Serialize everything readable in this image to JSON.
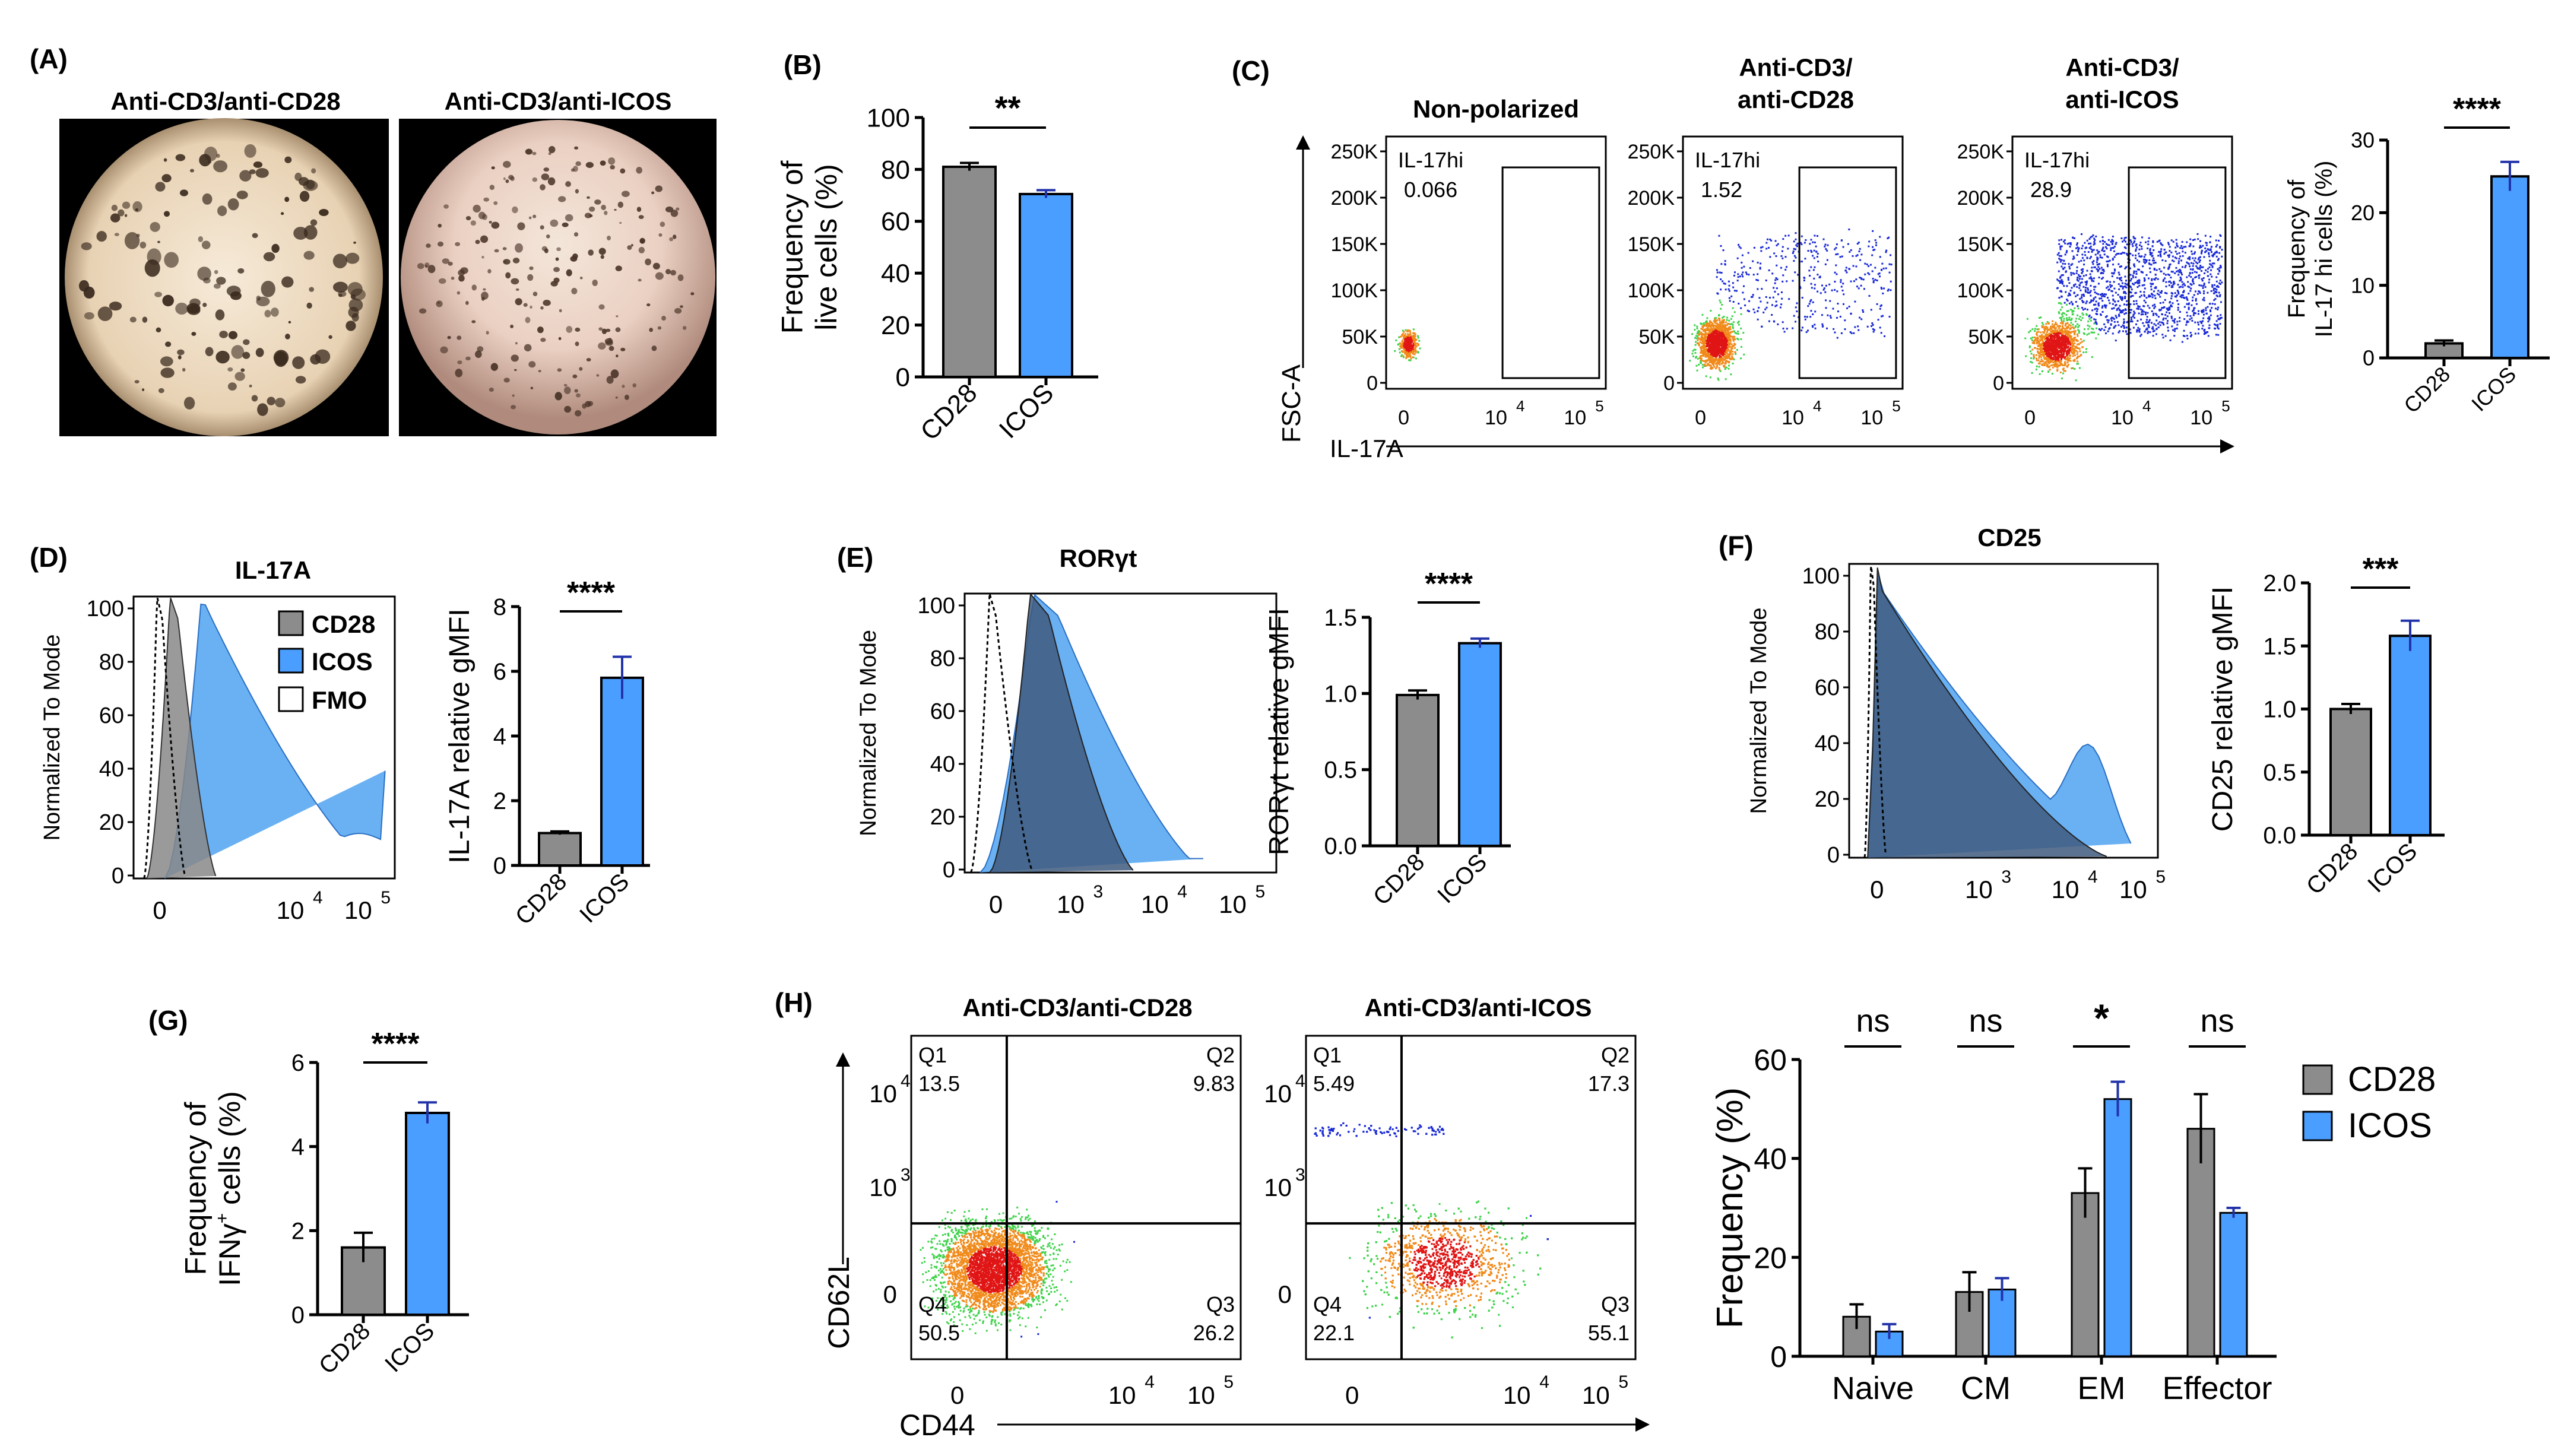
{
  "colors": {
    "cd28": "#8c8c8c",
    "icos": "#4a9eff",
    "icos_fill": "#5aa8f2",
    "error": "#2233aa",
    "dot_low": "#1a2ad6",
    "dot_mid": "#3fd24a",
    "dot_high": "#e01515"
  },
  "panels": {
    "A": {
      "label": "(A)",
      "left_title": "Anti-CD3/anti-CD28",
      "right_title": "Anti-CD3/anti-ICOS"
    },
    "B": {
      "label": "(B)"
    },
    "C": {
      "label": "(C)",
      "x_axis_label": "IL-17A",
      "y_axis_label": "FSC-A",
      "plots": [
        {
          "title": "Non-polarized",
          "gate_label": "IL-17hi",
          "gate_value": "0.066"
        },
        {
          "title": "Anti-CD3/ anti-CD28",
          "title_line1": "Anti-CD3/",
          "title_line2": "anti-CD28",
          "gate_label": "IL-17hi",
          "gate_value": "1.52"
        },
        {
          "title": "Anti-CD3/ anti-ICOS",
          "title_line1": "Anti-CD3/",
          "title_line2": "anti-ICOS",
          "gate_label": "IL-17hi",
          "gate_value": "28.9"
        }
      ],
      "y_ticks": [
        "250K",
        "200K",
        "150K",
        "100K",
        "50K",
        "0"
      ],
      "x_ticks": [
        "0",
        "10",
        "10"
      ],
      "x_tick_exps": [
        "4",
        "5"
      ]
    },
    "D": {
      "label": "(D)",
      "hist_title": "IL-17A",
      "y_axis_label": "Normalized To Mode",
      "legend": [
        {
          "name": "CD28",
          "symbol": "filled-grey"
        },
        {
          "name": "ICOS",
          "symbol": "filled-blue"
        },
        {
          "name": "FMO",
          "symbol": "open"
        }
      ],
      "y_ticks": [
        "100",
        "80",
        "60",
        "40",
        "20",
        "0"
      ],
      "x_ticks": [
        "0",
        "10",
        "10"
      ],
      "x_tick_exps": [
        "4",
        "5"
      ]
    },
    "E": {
      "label": "(E)",
      "hist_title": "RORγt",
      "y_axis_label": "Normalized To Mode",
      "y_ticks": [
        "100",
        "80",
        "60",
        "40",
        "20",
        "0"
      ],
      "x_ticks": [
        "0",
        "10",
        "10",
        "10"
      ],
      "x_tick_exps": [
        "3",
        "4",
        "5"
      ]
    },
    "F": {
      "label": "(F)",
      "hist_title": "CD25",
      "y_axis_label": "Normalized To Mode",
      "y_ticks": [
        "100",
        "80",
        "60",
        "40",
        "20",
        "0"
      ],
      "x_ticks": [
        "0",
        "10",
        "10",
        "10"
      ],
      "x_tick_exps": [
        "3",
        "4",
        "5"
      ]
    },
    "G": {
      "label": "(G)"
    },
    "H": {
      "label": "(H)",
      "x_axis_label": "CD44",
      "y_axis_label": "CD62L",
      "plots": [
        {
          "title": "Anti-CD3/anti-CD28",
          "quadrants": [
            {
              "q": "Q1",
              "v": "13.5"
            },
            {
              "q": "Q2",
              "v": "9.83"
            },
            {
              "q": "Q3",
              "v": "26.2"
            },
            {
              "q": "Q4",
              "v": "50.5"
            }
          ]
        },
        {
          "title": "Anti-CD3/anti-ICOS",
          "quadrants": [
            {
              "q": "Q1",
              "v": "5.49"
            },
            {
              "q": "Q2",
              "v": "17.3"
            },
            {
              "q": "Q3",
              "v": "55.1"
            },
            {
              "q": "Q4",
              "v": "22.1"
            }
          ]
        }
      ],
      "y_ticks": [
        "10",
        "10",
        "0"
      ],
      "y_tick_exps": [
        "4",
        "3"
      ],
      "x_ticks": [
        "0",
        "10",
        "10"
      ],
      "x_tick_exps": [
        "4",
        "5"
      ]
    }
  },
  "chart_data": [
    {
      "id": "B",
      "type": "bar",
      "categories": [
        "CD28",
        "ICOS"
      ],
      "values": [
        81,
        70.5
      ],
      "errors": [
        1.5,
        1.5
      ],
      "ylabel": "Frequency of live cells (%)",
      "ylabel_lines": [
        "Frequency of",
        "live cells (%)"
      ],
      "ylim": [
        0,
        100
      ],
      "yticks": [
        0,
        20,
        40,
        60,
        80,
        100
      ],
      "significance": "**"
    },
    {
      "id": "C",
      "type": "bar",
      "categories": [
        "CD28",
        "ICOS"
      ],
      "values": [
        2,
        25
      ],
      "errors": [
        0.4,
        2
      ],
      "ylabel": "Frequency of IL-17 hi cells (%)",
      "ylabel_lines": [
        "Frequency of",
        "IL-17 hi cells (%)"
      ],
      "ylim": [
        0,
        30
      ],
      "yticks": [
        0,
        10,
        20,
        30
      ],
      "significance": "****"
    },
    {
      "id": "D",
      "type": "bar",
      "categories": [
        "CD28",
        "ICOS"
      ],
      "values": [
        1,
        5.8
      ],
      "errors": [
        0.05,
        0.65
      ],
      "ylabel": "IL-17A relative gMFI",
      "ylabel_lines": [
        "IL-17A relative gMFI"
      ],
      "ylim": [
        0,
        8
      ],
      "yticks": [
        0,
        2,
        4,
        6,
        8
      ],
      "significance": "****"
    },
    {
      "id": "E",
      "type": "bar",
      "categories": [
        "CD28",
        "ICOS"
      ],
      "values": [
        0.99,
        1.33
      ],
      "errors": [
        0.03,
        0.03
      ],
      "ylabel": "RORγt relative gMFI",
      "ylabel_lines": [
        "RORγt relative gMFI"
      ],
      "ylim": [
        0,
        1.5
      ],
      "yticks": [
        0.0,
        0.5,
        1.0,
        1.5
      ],
      "significance": "****"
    },
    {
      "id": "F",
      "type": "bar",
      "categories": [
        "CD28",
        "ICOS"
      ],
      "values": [
        1.0,
        1.58
      ],
      "errors": [
        0.04,
        0.12
      ],
      "ylabel": "CD25 relative gMFI",
      "ylabel_lines": [
        "CD25 relative gMFI"
      ],
      "ylim": [
        0,
        2.0
      ],
      "yticks": [
        0.0,
        0.5,
        1.0,
        1.5,
        2.0
      ],
      "significance": "***"
    },
    {
      "id": "G",
      "type": "bar",
      "categories": [
        "CD28",
        "ICOS"
      ],
      "values": [
        1.6,
        4.8
      ],
      "errors": [
        0.35,
        0.25
      ],
      "ylabel": "Frequency of IFNγ+ cells (%)",
      "ylabel_lines": [
        "Frequency of",
        "IFNγ+ cells (%)"
      ],
      "ylim": [
        0,
        6
      ],
      "yticks": [
        0,
        2,
        4,
        6
      ],
      "significance": "****"
    },
    {
      "id": "H",
      "type": "bar",
      "categories": [
        "Naive",
        "CM",
        "EM",
        "Effector"
      ],
      "series": [
        {
          "name": "CD28",
          "values": [
            8,
            13,
            33,
            46
          ],
          "errors": [
            2.5,
            4,
            5,
            7
          ]
        },
        {
          "name": "ICOS",
          "values": [
            5,
            13.5,
            52,
            29
          ],
          "errors": [
            1.5,
            2.3,
            3.5,
            1
          ]
        }
      ],
      "ylabel": "Frequency (%)",
      "ylim": [
        0,
        60
      ],
      "yticks": [
        0,
        20,
        40,
        60
      ],
      "significance": [
        "ns",
        "ns",
        "*",
        "ns"
      ]
    }
  ]
}
